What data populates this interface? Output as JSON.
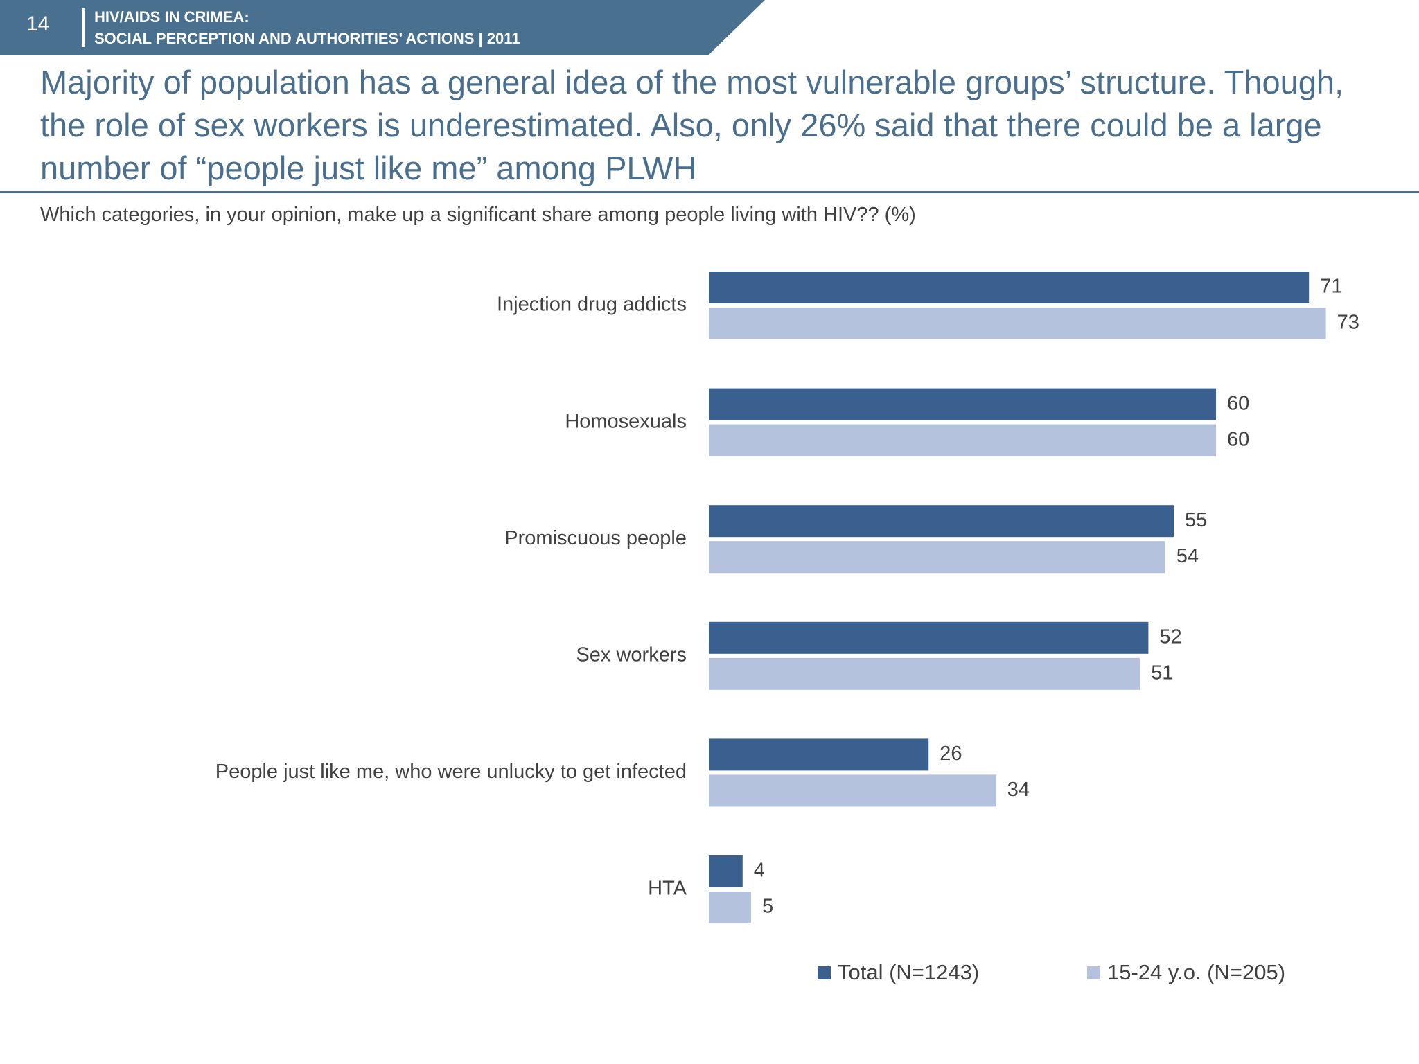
{
  "header": {
    "page_number": "14",
    "title_line1": "HIV/AIDS IN CRIMEA:",
    "title_line2": "SOCIAL PERCEPTION AND AUTHORITIES’ ACTIONS  |  2011",
    "band_color": "#4a7090"
  },
  "headline": {
    "line1": "Majority of population has a general idea of the most vulnerable groups’ structure. Though,",
    "line2": "the role of sex workers is underestimated. Also, only 26% said that there could be a large",
    "line3": "number of “people just like me” among PLWH",
    "color": "#4a6f8e"
  },
  "question": "Which categories, in your opinion, make up a significant share among people living with HIV?? (%)",
  "chart_data": {
    "type": "bar",
    "orientation": "horizontal",
    "categories": [
      "Injection drug addicts",
      "Homosexuals",
      "Promiscuous people",
      "Sex workers",
      "People just like me, who were unlucky to get infected",
      "HTA"
    ],
    "series": [
      {
        "name": "Total (N=1243)",
        "values": [
          71,
          60,
          55,
          52,
          26,
          4
        ],
        "color": "#3a6090"
      },
      {
        "name": "15-24 y.o. (N=205)",
        "values": [
          73,
          60,
          54,
          51,
          34,
          5
        ],
        "color": "#b4c2de"
      }
    ],
    "title": "",
    "xlabel": "",
    "ylabel": "",
    "xlim": [
      0,
      100
    ],
    "data_labels": true,
    "grid": false,
    "legend_position": "bottom"
  }
}
